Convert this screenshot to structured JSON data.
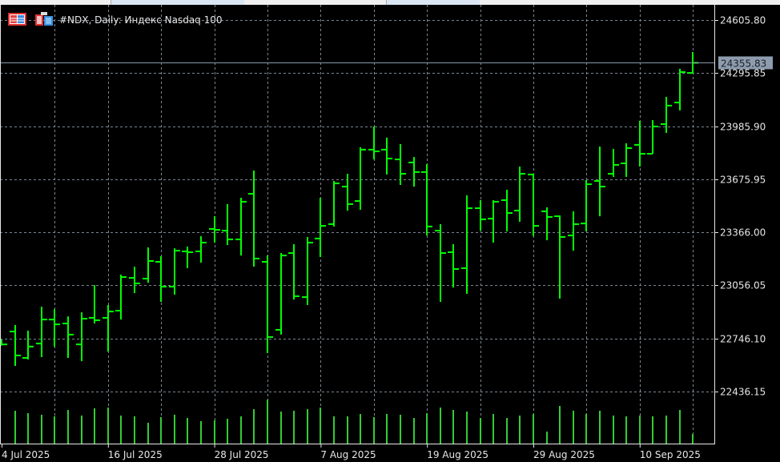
{
  "header": {
    "title": "#NDX, Daily:  Индекс Nasdaq 100",
    "icons": [
      "trade-panel-icon",
      "chart-window-icon"
    ]
  },
  "colors": {
    "background": "#000000",
    "bar": "#00ff00",
    "volume": "#32cd32",
    "grid": "#7a8794",
    "axis": "#e6e6e6",
    "price_line": "#8a9aab",
    "price_label_bg": "#8d9cae"
  },
  "price_axis": {
    "labels": [
      "24605.80",
      "24295.85",
      "23985.90",
      "23675.95",
      "23366.00",
      "23056.05",
      "22746.10",
      "22436.15"
    ],
    "current_price_label": "24355.83"
  },
  "time_axis": {
    "labels": [
      "4 Jul 2025",
      "16 Jul 2025",
      "28 Jul 2025",
      "7 Aug 2025",
      "19 Aug 2025",
      "29 Aug 2025",
      "10 Sep 2025"
    ]
  },
  "chart_data": {
    "type": "ohlc",
    "symbol": "#NDX",
    "timeframe": "Daily",
    "grid": true,
    "ylim": [
      22380,
      24720
    ],
    "current_price": 24355.83,
    "dates": [
      "2025-07-04",
      "2025-07-07",
      "2025-07-08",
      "2025-07-09",
      "2025-07-10",
      "2025-07-11",
      "2025-07-14",
      "2025-07-15",
      "2025-07-16",
      "2025-07-17",
      "2025-07-18",
      "2025-07-21",
      "2025-07-22",
      "2025-07-23",
      "2025-07-24",
      "2025-07-25",
      "2025-07-28",
      "2025-07-29",
      "2025-07-30",
      "2025-07-31",
      "2025-08-01",
      "2025-08-04",
      "2025-08-05",
      "2025-08-06",
      "2025-08-07",
      "2025-08-08",
      "2025-08-11",
      "2025-08-12",
      "2025-08-13",
      "2025-08-14",
      "2025-08-15",
      "2025-08-18",
      "2025-08-19",
      "2025-08-20",
      "2025-08-21",
      "2025-08-22",
      "2025-08-25",
      "2025-08-26",
      "2025-08-27",
      "2025-08-28",
      "2025-08-29",
      "2025-09-01",
      "2025-09-02",
      "2025-09-03",
      "2025-09-04",
      "2025-09-05",
      "2025-09-08",
      "2025-09-09",
      "2025-09-10",
      "2025-09-11",
      "2025-09-12",
      "2025-09-15",
      "2025-09-16"
    ],
    "open": [
      22730,
      22787,
      22633,
      22717,
      22857,
      22834,
      22712,
      22867,
      22867,
      22909,
      23100,
      23096,
      23194,
      23049,
      23255,
      23255,
      23386,
      23376,
      23325,
      23591,
      23194,
      22797,
      23245,
      22988,
      23330,
      23414,
      23633,
      23549,
      23849,
      23849,
      23792,
      23774,
      23718,
      23376,
      23250,
      23157,
      23507,
      23446,
      23554,
      23493,
      23704,
      23489,
      23460,
      23348,
      23418,
      23666,
      23708,
      23769,
      23877,
      23825,
      23998,
      24124,
      24297
    ],
    "high": [
      22740,
      22825,
      22792,
      22932,
      22917,
      22875,
      22899,
      23058,
      22942,
      23119,
      23166,
      23278,
      23227,
      23273,
      23283,
      23344,
      23460,
      23531,
      23568,
      23727,
      23231,
      23245,
      23297,
      23339,
      23568,
      23666,
      23708,
      23863,
      23984,
      23919,
      23881,
      23806,
      23764,
      23414,
      23297,
      23582,
      23554,
      23554,
      23615,
      23750,
      23708,
      23512,
      23465,
      23489,
      23671,
      23867,
      23853,
      23886,
      24017,
      24021,
      24157,
      24321,
      24419
    ],
    "low": [
      22705,
      22586,
      22624,
      22638,
      22699,
      22633,
      22614,
      22834,
      22670,
      22857,
      23012,
      23072,
      22960,
      23002,
      23157,
      23189,
      23306,
      23292,
      23231,
      23166,
      22661,
      22769,
      22974,
      22942,
      23222,
      23400,
      23493,
      23498,
      23792,
      23704,
      23643,
      23633,
      23348,
      22960,
      23044,
      23007,
      23376,
      23306,
      23372,
      23428,
      23344,
      23320,
      22979,
      23259,
      23372,
      23460,
      23690,
      23690,
      23750,
      23825,
      23947,
      24078,
      24293
    ],
    "close": [
      22712,
      22647,
      22699,
      22857,
      22829,
      22769,
      22862,
      22853,
      22904,
      23105,
      23068,
      23199,
      23049,
      23259,
      23250,
      23306,
      23381,
      23325,
      23545,
      23213,
      22755,
      23231,
      22993,
      23306,
      23404,
      23652,
      23531,
      23849,
      23839,
      23797,
      23708,
      23718,
      23400,
      23245,
      23152,
      23507,
      23442,
      23545,
      23479,
      23708,
      23404,
      23456,
      23339,
      23414,
      23647,
      23633,
      23760,
      23858,
      23825,
      23984,
      24106,
      24302,
      24355.83
    ],
    "volume": [
      null,
      41,
      38,
      36,
      34,
      42,
      35,
      44,
      45,
      35,
      34,
      26,
      33,
      36,
      32,
      28,
      29,
      31,
      34,
      43,
      55,
      40,
      41,
      43,
      45,
      34,
      34,
      37,
      33,
      37,
      36,
      32,
      38,
      45,
      42,
      40,
      32,
      37,
      32,
      35,
      37,
      15,
      47,
      41,
      37,
      41,
      35,
      34,
      35,
      34,
      35,
      42,
      12
    ]
  }
}
